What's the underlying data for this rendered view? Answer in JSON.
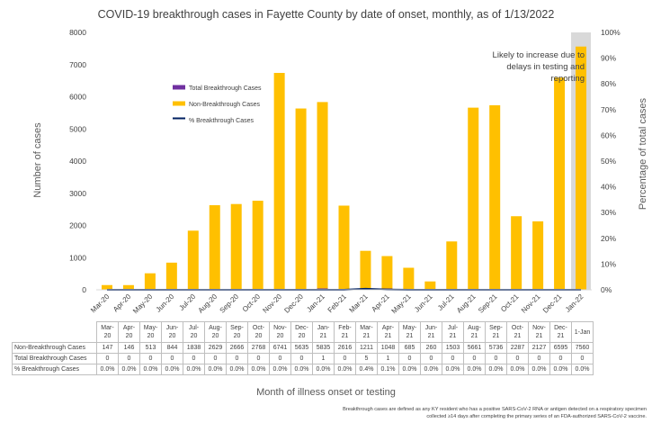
{
  "chart_data": {
    "type": "bar",
    "title": "COVID-19 breakthrough cases in Fayette County by date of onset, monthly, as of 1/13/2022",
    "xlabel": "Month of illness onset or testing",
    "ylabel": "Number of cases",
    "y2label": "Percentage of total cases",
    "ylim": [
      0,
      8000
    ],
    "y2lim": [
      0,
      100
    ],
    "yticks": [
      "0",
      "1000",
      "2000",
      "3000",
      "4000",
      "5000",
      "6000",
      "7000",
      "8000"
    ],
    "y2ticks": [
      "0%",
      "10%",
      "20%",
      "30%",
      "40%",
      "50%",
      "60%",
      "70%",
      "80%",
      "90%",
      "100%"
    ],
    "categories": [
      "Mar-20",
      "Apr-20",
      "May-20",
      "Jun-20",
      "Jul-20",
      "Aug-20",
      "Sep-20",
      "Oct-20",
      "Nov-20",
      "Dec-20",
      "Jan-21",
      "Feb-21",
      "Mar-21",
      "Apr-21",
      "May-21",
      "Jun-21",
      "Jul-21",
      "Aug-21",
      "Sep-21",
      "Oct-21",
      "Nov-21",
      "Dec-21",
      "Jan-22"
    ],
    "table_headers": [
      [
        "Mar-",
        "20"
      ],
      [
        "Apr-",
        "20"
      ],
      [
        "May-",
        "20"
      ],
      [
        "Jun-",
        "20"
      ],
      [
        "Jul-",
        "20"
      ],
      [
        "Aug-",
        "20"
      ],
      [
        "Sep-",
        "20"
      ],
      [
        "Oct-",
        "20"
      ],
      [
        "Nov-",
        "20"
      ],
      [
        "Dec-",
        "20"
      ],
      [
        "Jan-",
        "21"
      ],
      [
        "Feb-",
        "21"
      ],
      [
        "Mar-",
        "21"
      ],
      [
        "Apr-",
        "21"
      ],
      [
        "May-",
        "21"
      ],
      [
        "Jun-",
        "21"
      ],
      [
        "Jul-",
        "21"
      ],
      [
        "Aug-",
        "21"
      ],
      [
        "Sep-",
        "21"
      ],
      [
        "Oct-",
        "21"
      ],
      [
        "Nov-",
        "21"
      ],
      [
        "Dec-",
        "21"
      ],
      [
        "1-Jan",
        ""
      ]
    ],
    "series": [
      {
        "name": "Total Breakthrough Cases",
        "color": "#7030a0",
        "axis": "left",
        "values": [
          0,
          0,
          0,
          0,
          0,
          0,
          0,
          0,
          0,
          0,
          1,
          0,
          5,
          1,
          0,
          0,
          0,
          0,
          0,
          0,
          0,
          0,
          0
        ]
      },
      {
        "name": "Non-Breakthrough Cases",
        "color": "#ffc000",
        "axis": "left",
        "values": [
          147,
          146,
          513,
          844,
          1838,
          2629,
          2666,
          2768,
          6741,
          5635,
          5835,
          2616,
          1211,
          1048,
          685,
          260,
          1503,
          5661,
          5736,
          2287,
          2127,
          6595,
          7560
        ]
      },
      {
        "name": "% Breakthrough Cases",
        "color": "#002060",
        "axis": "right",
        "values": [
          0.0,
          0.0,
          0.0,
          0.0,
          0.0,
          0.0,
          0.0,
          0.0,
          0.0,
          0.0,
          0.0,
          0.0,
          0.4,
          0.1,
          0.0,
          0.0,
          0.0,
          0.0,
          0.0,
          0.0,
          0.0,
          0.0,
          0.0
        ]
      }
    ],
    "table_rows": [
      {
        "label": "Non-Breakthrough Cases",
        "values": [
          "147",
          "146",
          "513",
          "844",
          "1838",
          "2629",
          "2666",
          "2768",
          "6741",
          "5635",
          "5835",
          "2616",
          "1211",
          "1048",
          "685",
          "260",
          "1503",
          "5661",
          "5736",
          "2287",
          "2127",
          "6595",
          "7560"
        ]
      },
      {
        "label": "Total Breakthrough Cases",
        "values": [
          "0",
          "0",
          "0",
          "0",
          "0",
          "0",
          "0",
          "0",
          "0",
          "0",
          "1",
          "0",
          "5",
          "1",
          "0",
          "0",
          "0",
          "0",
          "0",
          "0",
          "0",
          "0",
          "0"
        ]
      },
      {
        "label": "% Breakthrough Cases",
        "values": [
          "0.0%",
          "0.0%",
          "0.0%",
          "0.0%",
          "0.0%",
          "0.0%",
          "0.0%",
          "0.0%",
          "0.0%",
          "0.0%",
          "0.0%",
          "0.0%",
          "0.4%",
          "0.1%",
          "0.0%",
          "0.0%",
          "0.0%",
          "0.0%",
          "0.0%",
          "0.0%",
          "0.0%",
          "0.0%",
          "0.0%"
        ]
      }
    ],
    "annotation": "Likely to increase due to delays in testing and reporting",
    "highlight_category": "Jan-22",
    "highlight_color": "#d9d9d9",
    "legend_position": "upper-left inside plot",
    "grid": false
  },
  "footnote_line1": "Breakthrough cases are defined as any KY resident who has a positive SARS-CoV-2 RNA or antigen detected on a respiratory specimen",
  "footnote_line2": "collected ≥14 days after completing the primary series of an FDA-authorized SARS-CoV-2 vaccine."
}
